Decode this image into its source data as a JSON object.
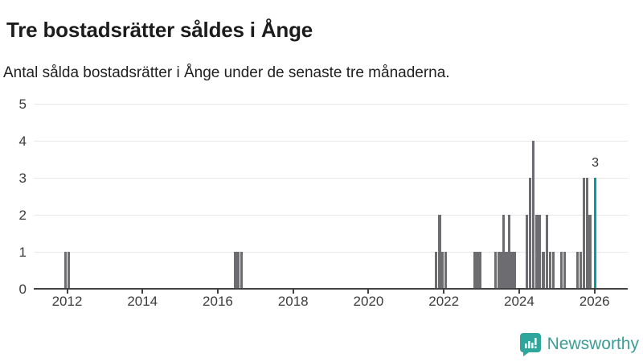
{
  "header": {
    "title": "Tre bostadsrätter såldes i Ånge",
    "subtitle": "Antal sålda bostadsrätter i Ånge under de senaste tre månaderna."
  },
  "chart_data": {
    "type": "bar",
    "title": "Tre bostadsrätter såldes i Ånge",
    "subtitle": "Antal sålda bostadsrätter i Ånge under de senaste tre månaderna.",
    "xlabel": "",
    "ylabel": "",
    "grid": "horizontal",
    "x_axis": {
      "ticks": [
        2012,
        2014,
        2016,
        2018,
        2020,
        2022,
        2024,
        2026
      ],
      "range": [
        2011.1,
        2026.9
      ]
    },
    "y_axis": {
      "ticks": [
        0,
        1,
        2,
        3,
        4,
        5
      ],
      "range": [
        0,
        5
      ]
    },
    "bar_color": "#6c6c71",
    "highlight_color": "#00a096",
    "bars": [
      {
        "x": 2011.96,
        "v": 1
      },
      {
        "x": 2012.05,
        "v": 1
      },
      {
        "x": 2016.47,
        "v": 1
      },
      {
        "x": 2016.55,
        "v": 1
      },
      {
        "x": 2016.63,
        "v": 1
      },
      {
        "x": 2021.79,
        "v": 1
      },
      {
        "x": 2021.89,
        "v": 2
      },
      {
        "x": 2021.97,
        "v": 1
      },
      {
        "x": 2022.05,
        "v": 1
      },
      {
        "x": 2022.81,
        "v": 1
      },
      {
        "x": 2022.89,
        "v": 1
      },
      {
        "x": 2022.96,
        "v": 1
      },
      {
        "x": 2023.37,
        "v": 1
      },
      {
        "x": 2023.45,
        "v": 1
      },
      {
        "x": 2023.52,
        "v": 1
      },
      {
        "x": 2023.59,
        "v": 2
      },
      {
        "x": 2023.66,
        "v": 1
      },
      {
        "x": 2023.73,
        "v": 2
      },
      {
        "x": 2023.81,
        "v": 1
      },
      {
        "x": 2023.88,
        "v": 1
      },
      {
        "x": 2024.2,
        "v": 2
      },
      {
        "x": 2024.29,
        "v": 3
      },
      {
        "x": 2024.37,
        "v": 4
      },
      {
        "x": 2024.47,
        "v": 2
      },
      {
        "x": 2024.55,
        "v": 2
      },
      {
        "x": 2024.64,
        "v": 1
      },
      {
        "x": 2024.73,
        "v": 2
      },
      {
        "x": 2024.82,
        "v": 1
      },
      {
        "x": 2024.9,
        "v": 1
      },
      {
        "x": 2025.13,
        "v": 1
      },
      {
        "x": 2025.21,
        "v": 1
      },
      {
        "x": 2025.55,
        "v": 1
      },
      {
        "x": 2025.63,
        "v": 1
      },
      {
        "x": 2025.72,
        "v": 3
      },
      {
        "x": 2025.8,
        "v": 3
      },
      {
        "x": 2025.88,
        "v": 2
      },
      {
        "x": 2026.02,
        "v": 3,
        "highlight": true
      }
    ],
    "annotation": {
      "text": "3",
      "x": 2026.02,
      "v": 3
    }
  },
  "footer": {
    "brand": "Newsworthy",
    "logo_icon": "newsworthy-chart-bubble-icon",
    "brand_text_color": "#3d9c94",
    "brand_icon_color": "#2fa69b"
  }
}
